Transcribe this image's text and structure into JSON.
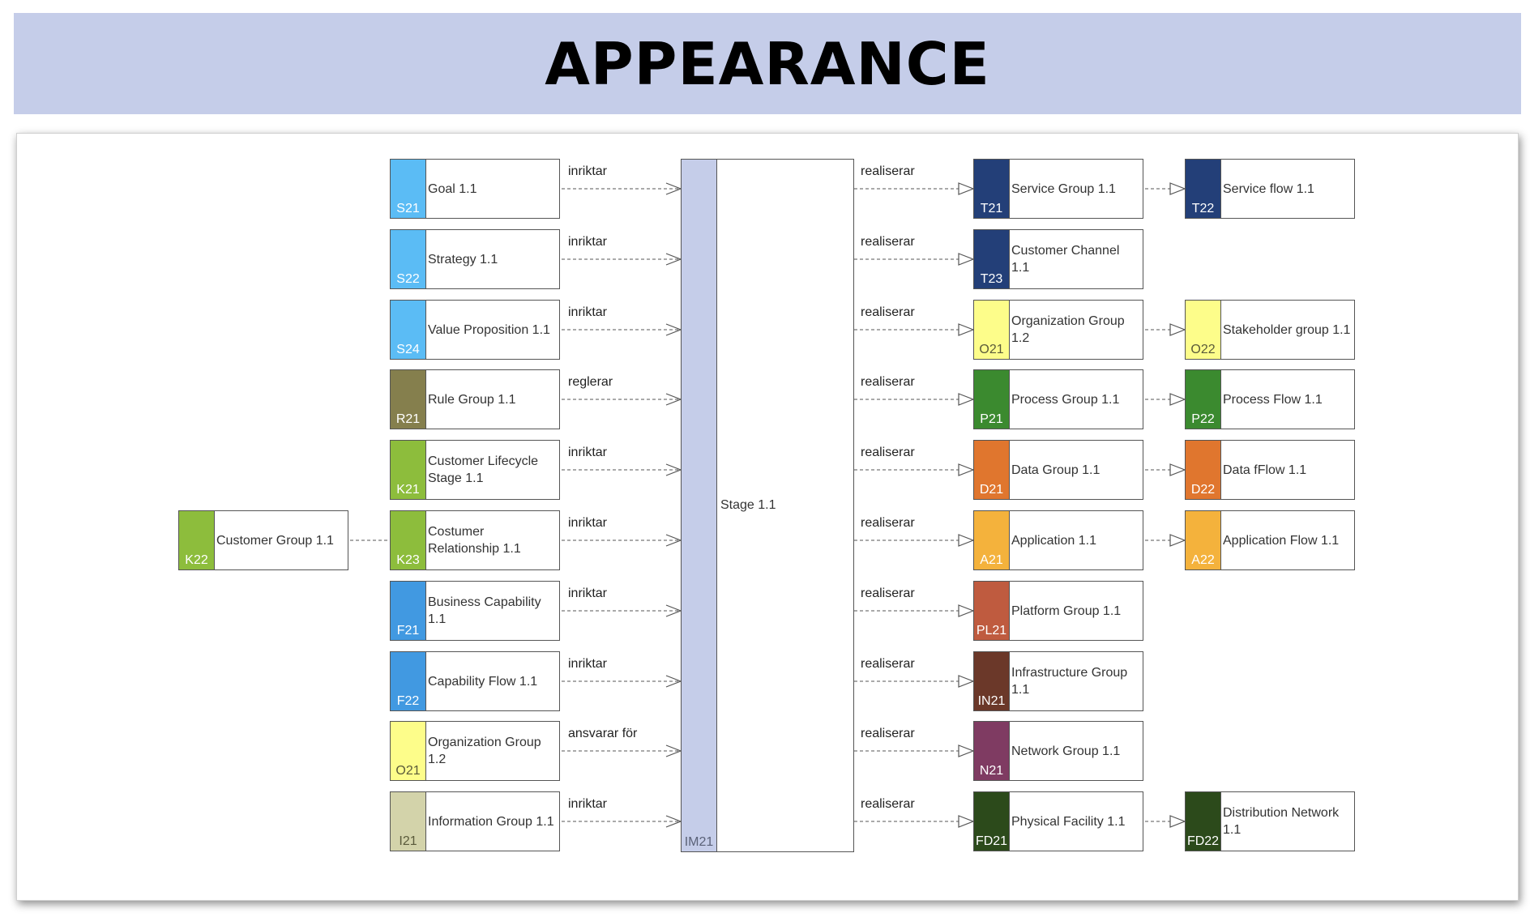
{
  "title": "APPEARANCE",
  "stage": {
    "code": "IM21",
    "label": "Stage 1.1",
    "color": "#c5cde9"
  },
  "customer_group": {
    "code": "K22",
    "label": "Customer Group 1.1",
    "color": "#8dbd3c"
  },
  "left_nodes": [
    {
      "code": "S21",
      "label": "Goal 1.1",
      "color": "#5bbcf5",
      "relation": "inriktar"
    },
    {
      "code": "S22",
      "label": "Strategy 1.1",
      "color": "#5bbcf5",
      "relation": "inriktar"
    },
    {
      "code": "S24",
      "label": "Value Proposition 1.1",
      "color": "#5bbcf5",
      "relation": "inriktar"
    },
    {
      "code": "R21",
      "label": "Rule Group 1.1",
      "color": "#857f4d",
      "relation": "reglerar"
    },
    {
      "code": "K21",
      "label": "Customer Lifecycle Stage 1.1",
      "color": "#8dbd3c",
      "relation": "inriktar"
    },
    {
      "code": "K23",
      "label": "Costumer Relationship 1.1",
      "color": "#8dbd3c",
      "relation": "inriktar"
    },
    {
      "code": "F21",
      "label": "Business Capability 1.1",
      "color": "#4199e1",
      "relation": "inriktar"
    },
    {
      "code": "F22",
      "label": "Capability Flow 1.1",
      "color": "#4199e1",
      "relation": "inriktar"
    },
    {
      "code": "O21",
      "label": "Organization Group 1.2",
      "color": "#fdfd8a",
      "relation": "ansvarar för"
    },
    {
      "code": "I21",
      "label": "Information Group 1.1",
      "color": "#d3d3aa",
      "relation": "inriktar"
    }
  ],
  "right_nodes": [
    {
      "code": "T21",
      "label": "Service Group 1.1",
      "color": "#233f78",
      "relation": "realiserar"
    },
    {
      "code": "T23",
      "label": "Customer Channel 1.1",
      "color": "#233f78",
      "relation": "realiserar"
    },
    {
      "code": "O21",
      "label": "Organization Group 1.2",
      "color": "#fdfd8a",
      "relation": "realiserar"
    },
    {
      "code": "P21",
      "label": "Process Group 1.1",
      "color": "#3b8a2f",
      "relation": "realiserar"
    },
    {
      "code": "D21",
      "label": "Data Group 1.1",
      "color": "#e0762e",
      "relation": "realiserar"
    },
    {
      "code": "A21",
      "label": "Application 1.1",
      "color": "#f4b23c",
      "relation": "realiserar"
    },
    {
      "code": "PL21",
      "label": "Platform Group 1.1",
      "color": "#bf5b3f",
      "relation": "realiserar"
    },
    {
      "code": "IN21",
      "label": "Infrastructure Group 1.1",
      "color": "#6b3829",
      "relation": "realiserar"
    },
    {
      "code": "N21",
      "label": "Network Group 1.1",
      "color": "#7f3b62",
      "relation": "realiserar"
    },
    {
      "code": "FD21",
      "label": "Physical Facility 1.1",
      "color": "#2c4a1b",
      "relation": "realiserar"
    }
  ],
  "far_right_nodes": [
    {
      "row": 0,
      "code": "T22",
      "label": "Service flow 1.1",
      "color": "#233f78"
    },
    {
      "row": 2,
      "code": "O22",
      "label": "Stakeholder group 1.1",
      "color": "#fdfd8a"
    },
    {
      "row": 3,
      "code": "P22",
      "label": "Process Flow 1.1",
      "color": "#3b8a2f"
    },
    {
      "row": 4,
      "code": "D22",
      "label": "Data fFlow 1.1",
      "color": "#e0762e"
    },
    {
      "row": 5,
      "code": "A22",
      "label": "Application Flow 1.1",
      "color": "#f4b23c"
    },
    {
      "row": 9,
      "code": "FD22",
      "label": "Distribution Network 1.1",
      "color": "#2c4a1b"
    }
  ]
}
